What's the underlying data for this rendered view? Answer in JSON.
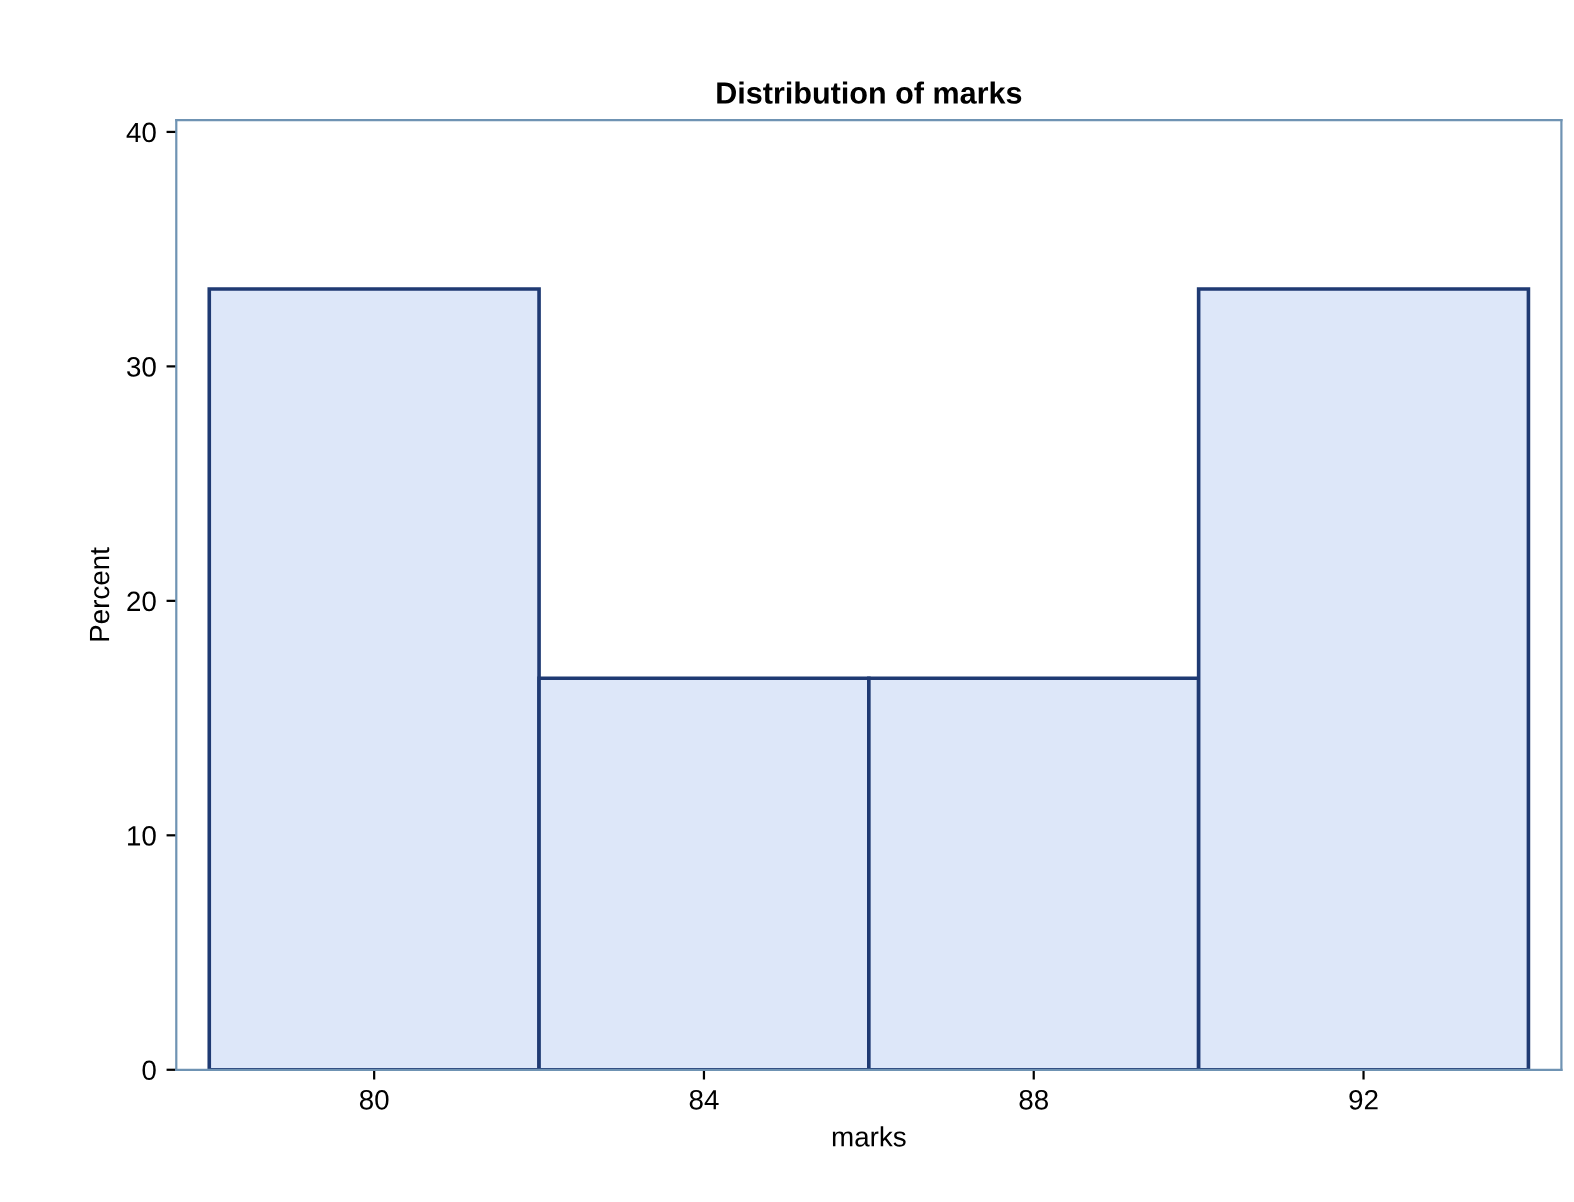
{
  "chart_data": {
    "type": "histogram",
    "title": "Distribution of marks",
    "xlabel": "marks",
    "ylabel": "Percent",
    "bins": [
      78,
      82,
      86,
      90,
      94
    ],
    "values": [
      33.3,
      16.7,
      16.7,
      33.3
    ],
    "color": "#dde7f9",
    "xlim": [
      77.6,
      94.4
    ],
    "xticks": [
      80,
      84,
      88,
      92
    ],
    "ylim": [
      0,
      40.5
    ],
    "yticks": [
      0,
      10,
      20,
      30,
      40
    ],
    "grid": false
  }
}
